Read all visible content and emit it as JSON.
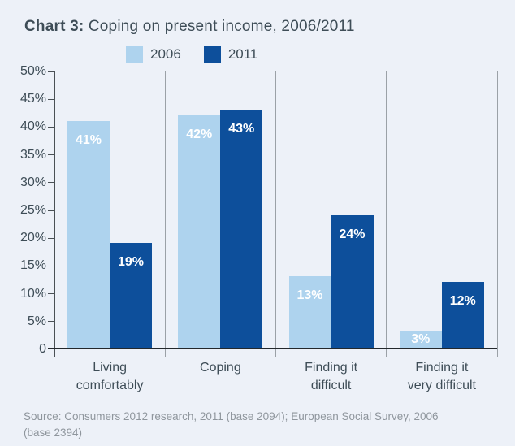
{
  "title": {
    "prefix": "Chart 3:",
    "rest": " Coping on present income, 2006/2011"
  },
  "legend": {
    "items": [
      {
        "label": "2006",
        "color": "#aed3ee"
      },
      {
        "label": "2011",
        "color": "#0d4f9b"
      }
    ]
  },
  "chart_data": {
    "type": "bar",
    "title": "Chart 3: Coping on present income, 2006/2011",
    "categories": [
      "Living\ncomfortably",
      "Coping",
      "Finding it\ndifficult",
      "Finding it\nvery difficult"
    ],
    "series": [
      {
        "name": "2006",
        "color": "#aed3ee",
        "values": [
          41,
          42,
          13,
          3
        ]
      },
      {
        "name": "2011",
        "color": "#0d4f9b",
        "values": [
          19,
          43,
          24,
          12
        ]
      }
    ],
    "value_label_suffix": "%",
    "value_label_color": "#ffffff",
    "xlabel": "",
    "ylabel": "",
    "ylim": [
      0,
      50
    ],
    "ytick_step": 5,
    "yticks": [
      {
        "value": 50,
        "label": "50%"
      },
      {
        "value": 45,
        "label": "45%"
      },
      {
        "value": 40,
        "label": "40%"
      },
      {
        "value": 35,
        "label": "35%"
      },
      {
        "value": 30,
        "label": "30%"
      },
      {
        "value": 25,
        "label": "25%"
      },
      {
        "value": 20,
        "label": "20%"
      },
      {
        "value": 15,
        "label": "15%"
      },
      {
        "value": 10,
        "label": "10%"
      },
      {
        "value": 5,
        "label": "5%"
      },
      {
        "value": 0,
        "label": "0"
      }
    ],
    "legend_position": "top",
    "grid": false,
    "group_separators": true
  },
  "source": {
    "line1": "Source: Consumers 2012 research, 2011 (base 2094); European Social Survey, 2006",
    "line2": "(base 2394)"
  },
  "colors": {
    "background": "#edf1f8",
    "axis": "#4a5055",
    "baseline": "#23282c",
    "separator": "#9ba1a7",
    "text": "#3e4d57",
    "source_text": "#8f969d"
  }
}
